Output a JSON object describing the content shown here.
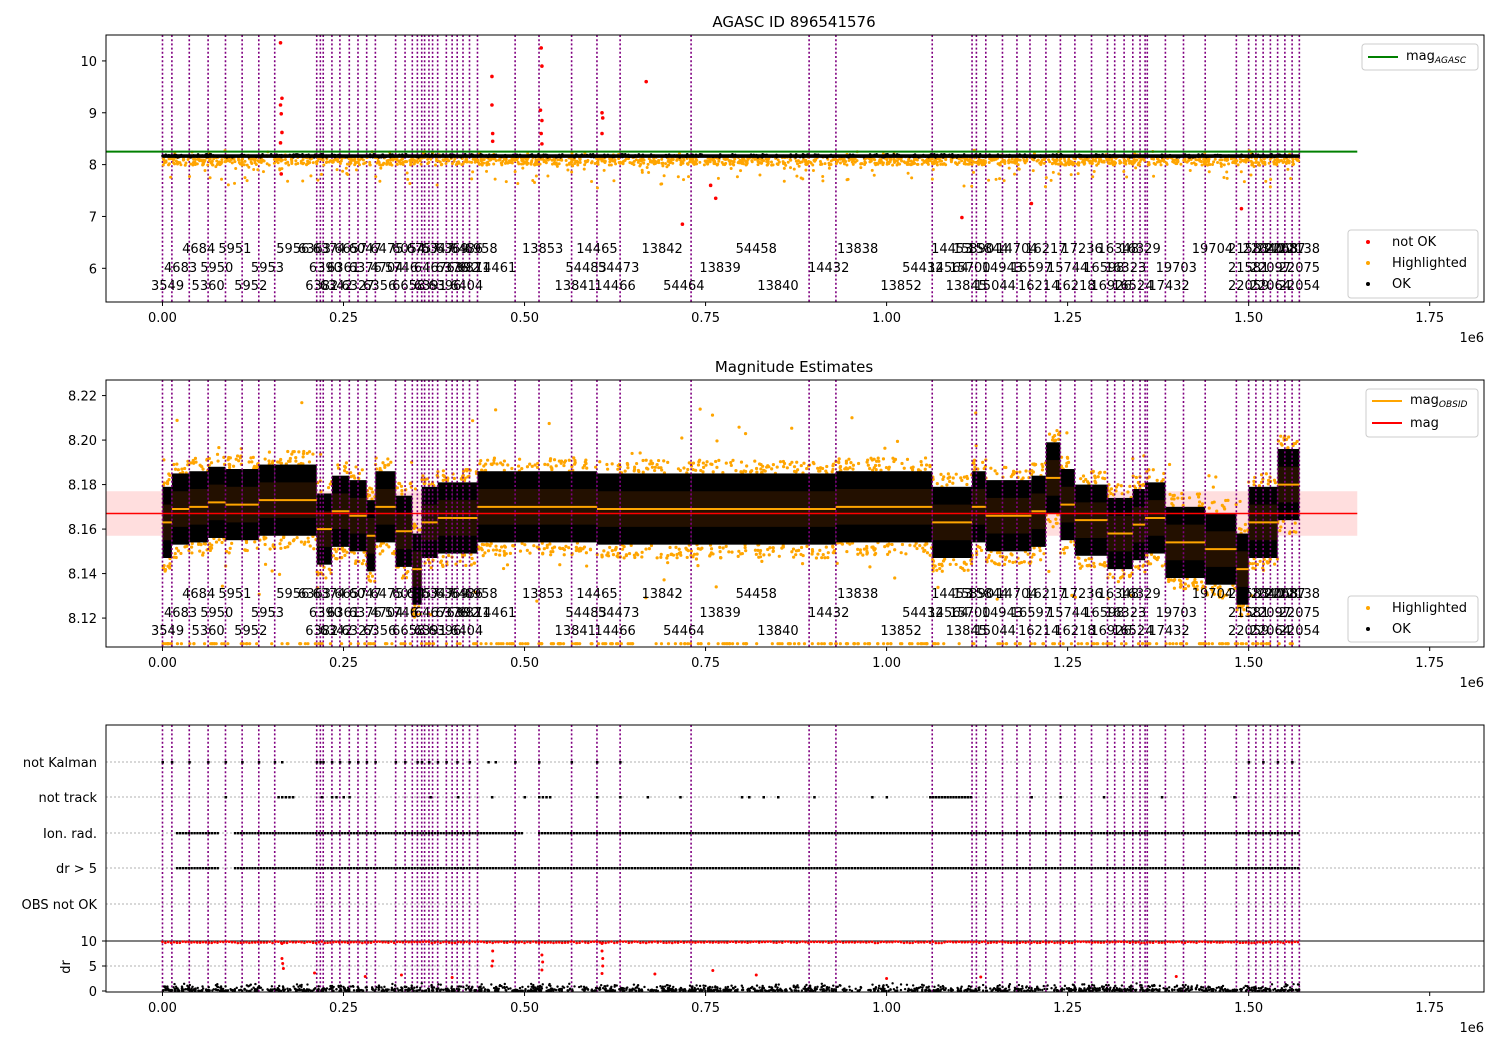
{
  "chart_data": [
    {
      "type": "scatter",
      "title": "AGASC ID 896541576",
      "xlabel": "",
      "ylabel": "",
      "x_offset_label": "1e6",
      "xlim": [
        -0.078,
        1.825
      ],
      "ylim": [
        5.35,
        10.5
      ],
      "x_ticks": [
        0.0,
        0.25,
        0.5,
        0.75,
        1.0,
        1.25,
        1.5,
        1.75
      ],
      "x_tick_labels": [
        "0.00",
        "0.25",
        "0.50",
        "0.75",
        "1.00",
        "1.25",
        "1.50",
        "1.75"
      ],
      "y_ticks": [
        6,
        7,
        8,
        9,
        10
      ],
      "y_tick_labels": [
        "6",
        "7",
        "8",
        "9",
        "10"
      ],
      "grid": false,
      "legends": [
        {
          "placement": "top-right",
          "entries": [
            {
              "label": "mag",
              "sub": "AGASC",
              "color": "#008000",
              "marker": "line"
            }
          ]
        },
        {
          "placement": "bottom-right",
          "entries": [
            {
              "label": "not OK",
              "color": "#ff0000",
              "marker": "dot"
            },
            {
              "label": "Highlighted",
              "color": "#ffa500",
              "marker": "dot"
            },
            {
              "label": "OK",
              "color": "#000000",
              "marker": "dot"
            }
          ]
        }
      ],
      "series": [
        {
          "name": "mag_AGASC",
          "kind": "hline",
          "color": "#008000",
          "y": 8.25,
          "x_range": [
            -0.078,
            1.65
          ]
        },
        {
          "name": "OK",
          "kind": "band",
          "color": "#000000",
          "x_range": [
            0.0,
            1.57
          ],
          "y_range": [
            8.12,
            8.2
          ]
        },
        {
          "name": "not OK",
          "kind": "points",
          "color": "#ff0000",
          "points": [
            [
              0.163,
              10.35
            ],
            [
              0.165,
              9.28
            ],
            [
              0.163,
              9.15
            ],
            [
              0.164,
              8.98
            ],
            [
              0.165,
              8.62
            ],
            [
              0.163,
              8.42
            ],
            [
              0.164,
              7.82
            ],
            [
              0.455,
              9.7
            ],
            [
              0.455,
              9.15
            ],
            [
              0.456,
              8.6
            ],
            [
              0.456,
              8.45
            ],
            [
              0.523,
              10.25
            ],
            [
              0.524,
              9.9
            ],
            [
              0.522,
              9.05
            ],
            [
              0.524,
              8.85
            ],
            [
              0.523,
              8.6
            ],
            [
              0.524,
              8.4
            ],
            [
              0.607,
              9.0
            ],
            [
              0.608,
              8.9
            ],
            [
              0.607,
              8.6
            ],
            [
              0.668,
              9.6
            ],
            [
              0.718,
              6.85
            ],
            [
              0.757,
              7.6
            ],
            [
              0.764,
              7.35
            ],
            [
              1.104,
              6.98
            ],
            [
              1.2,
              7.25
            ],
            [
              1.49,
              7.15
            ]
          ]
        },
        {
          "name": "Highlighted",
          "kind": "scatter-band",
          "color": "#ffa500",
          "x_range": [
            0.0,
            1.57
          ],
          "y_range": [
            7.8,
            8.3
          ]
        }
      ],
      "obsid_lines": [
        0.0,
        0.013,
        0.037,
        0.063,
        0.087,
        0.11,
        0.133,
        0.155,
        0.213,
        0.218,
        0.222,
        0.234,
        0.245,
        0.258,
        0.27,
        0.282,
        0.294,
        0.322,
        0.335,
        0.345,
        0.352,
        0.358,
        0.362,
        0.368,
        0.373,
        0.38,
        0.392,
        0.4,
        0.407,
        0.415,
        0.424,
        0.435,
        0.487,
        0.52,
        0.565,
        0.6,
        0.632,
        0.73,
        0.893,
        0.93,
        1.063,
        1.118,
        1.124,
        1.137,
        1.16,
        1.18,
        1.198,
        1.22,
        1.24,
        1.26,
        1.283,
        1.305,
        1.315,
        1.328,
        1.34,
        1.35,
        1.357,
        1.36,
        1.385,
        1.41,
        1.44,
        1.483,
        1.5,
        1.51,
        1.52,
        1.53,
        1.54,
        1.55,
        1.56,
        1.57
      ]
    },
    {
      "type": "scatter",
      "title": "Magnitude Estimates",
      "xlabel": "",
      "ylabel": "",
      "x_offset_label": "1e6",
      "xlim": [
        -0.078,
        1.825
      ],
      "ylim": [
        8.107,
        8.227
      ],
      "x_ticks": [
        0.0,
        0.25,
        0.5,
        0.75,
        1.0,
        1.25,
        1.5,
        1.75
      ],
      "x_tick_labels": [
        "0.00",
        "0.25",
        "0.50",
        "0.75",
        "1.00",
        "1.25",
        "1.50",
        "1.75"
      ],
      "y_ticks": [
        8.12,
        8.14,
        8.16,
        8.18,
        8.2,
        8.22
      ],
      "y_tick_labels": [
        "8.12",
        "8.14",
        "8.16",
        "8.18",
        "8.20",
        "8.22"
      ],
      "grid": false,
      "legends": [
        {
          "placement": "top-right",
          "entries": [
            {
              "label": "mag",
              "sub": "OBSID",
              "color": "#ffa500",
              "marker": "line"
            },
            {
              "label": "mag",
              "sub": "",
              "color": "#ff0000",
              "marker": "line"
            }
          ]
        },
        {
          "placement": "bottom-right",
          "entries": [
            {
              "label": "Highlighted",
              "color": "#ffa500",
              "marker": "dot"
            },
            {
              "label": "OK",
              "color": "#000000",
              "marker": "dot"
            }
          ]
        }
      ],
      "series": [
        {
          "name": "mag",
          "kind": "hline",
          "color": "#ff0000",
          "y": 8.167,
          "band": [
            8.157,
            8.177
          ],
          "x_range": [
            -0.078,
            1.65
          ]
        },
        {
          "name": "mag_OBSID",
          "kind": "steps",
          "color": "#ffa500",
          "steps": [
            [
              0.0,
              0.013,
              8.163
            ],
            [
              0.013,
              0.037,
              8.169
            ],
            [
              0.037,
              0.063,
              8.17
            ],
            [
              0.063,
              0.087,
              8.172
            ],
            [
              0.087,
              0.11,
              8.171
            ],
            [
              0.11,
              0.133,
              8.171
            ],
            [
              0.133,
              0.155,
              8.173
            ],
            [
              0.155,
              0.213,
              8.173
            ],
            [
              0.213,
              0.234,
              8.16
            ],
            [
              0.234,
              0.258,
              8.168
            ],
            [
              0.258,
              0.282,
              8.166
            ],
            [
              0.282,
              0.294,
              8.157
            ],
            [
              0.294,
              0.322,
              8.17
            ],
            [
              0.322,
              0.345,
              8.159
            ],
            [
              0.345,
              0.358,
              8.142
            ],
            [
              0.358,
              0.38,
              8.163
            ],
            [
              0.38,
              0.4,
              8.165
            ],
            [
              0.4,
              0.435,
              8.165
            ],
            [
              0.435,
              0.52,
              8.17
            ],
            [
              0.52,
              0.6,
              8.17
            ],
            [
              0.6,
              0.73,
              8.169
            ],
            [
              0.73,
              0.93,
              8.169
            ],
            [
              0.93,
              1.063,
              8.17
            ],
            [
              1.063,
              1.118,
              8.163
            ],
            [
              1.118,
              1.137,
              8.17
            ],
            [
              1.137,
              1.16,
              8.166
            ],
            [
              1.16,
              1.2,
              8.166
            ],
            [
              1.2,
              1.22,
              8.168
            ],
            [
              1.22,
              1.24,
              8.183
            ],
            [
              1.24,
              1.26,
              8.171
            ],
            [
              1.26,
              1.305,
              8.164
            ],
            [
              1.305,
              1.34,
              8.158
            ],
            [
              1.34,
              1.357,
              8.162
            ],
            [
              1.357,
              1.385,
              8.165
            ],
            [
              1.385,
              1.44,
              8.154
            ],
            [
              1.44,
              1.483,
              8.151
            ],
            [
              1.483,
              1.5,
              8.142
            ],
            [
              1.5,
              1.54,
              8.163
            ],
            [
              1.54,
              1.57,
              8.18
            ]
          ]
        },
        {
          "name": "OK",
          "kind": "band-per-segment",
          "color": "#000000"
        },
        {
          "name": "Highlighted",
          "kind": "scatter-band",
          "color": "#ffa500"
        }
      ],
      "obsid_lines": "same-as-panel-1"
    },
    {
      "type": "scatter",
      "title": "",
      "xlabel": "",
      "ylabel": "dr",
      "x_offset_label": "1e6",
      "xlim": [
        -0.078,
        1.825
      ],
      "ylim": [
        -0.5,
        10.5
      ],
      "x_ticks": [
        0.0,
        0.25,
        0.5,
        0.75,
        1.0,
        1.25,
        1.5,
        1.75
      ],
      "x_tick_labels": [
        "0.00",
        "0.25",
        "0.50",
        "0.75",
        "1.00",
        "1.25",
        "1.50",
        "1.75"
      ],
      "y_ticks": [
        0,
        5,
        10
      ],
      "y_tick_labels": [
        "0",
        "5",
        "10"
      ],
      "flag_labels": [
        "not Kalman",
        "not track",
        "Ion. rad.",
        "dr > 5",
        "OBS not OK"
      ],
      "grid": true,
      "series": [
        {
          "name": "dr OK",
          "kind": "scatter-band",
          "color": "#000000",
          "y_range": [
            0,
            1.5
          ]
        },
        {
          "name": "dr not OK",
          "kind": "row",
          "color": "#ff0000",
          "y": 10
        },
        {
          "name": "dr spikes",
          "kind": "points",
          "color": "#ff0000",
          "points": [
            [
              0.165,
              9.5
            ],
            [
              0.165,
              6.5
            ],
            [
              0.166,
              5.5
            ],
            [
              0.167,
              4.5
            ],
            [
              0.456,
              8.0
            ],
            [
              0.456,
              6.0
            ],
            [
              0.455,
              5.0
            ],
            [
              0.524,
              7.2
            ],
            [
              0.525,
              5.8
            ],
            [
              0.524,
              4.2
            ],
            [
              0.607,
              9.5
            ],
            [
              0.607,
              8.0
            ],
            [
              0.608,
              6.5
            ],
            [
              0.608,
              5.0
            ],
            [
              0.607,
              3.5
            ],
            [
              0.33,
              3.2
            ],
            [
              0.4,
              2.7
            ],
            [
              0.28,
              2.9
            ],
            [
              0.68,
              3.4
            ],
            [
              0.76,
              4.1
            ],
            [
              0.82,
              3.2
            ],
            [
              1.0,
              2.5
            ],
            [
              1.13,
              2.8
            ],
            [
              1.4,
              2.9
            ],
            [
              0.21,
              3.6
            ]
          ]
        }
      ],
      "flag_rows": {
        "not Kalman": [
          0.0,
          0.013,
          0.037,
          0.063,
          0.087,
          0.11,
          0.133,
          0.155,
          0.165,
          0.213,
          0.218,
          0.222,
          0.234,
          0.245,
          0.258,
          0.27,
          0.282,
          0.294,
          0.322,
          0.335,
          0.352,
          0.358,
          0.368,
          0.38,
          0.392,
          0.407,
          0.424,
          0.45,
          0.46,
          0.487,
          0.52,
          0.565,
          0.6,
          0.632,
          1.5,
          1.52,
          1.54,
          1.56
        ],
        "not track": [
          0.087,
          0.16,
          0.165,
          0.17,
          0.175,
          0.18,
          0.22,
          0.234,
          0.24,
          0.25,
          0.258,
          0.37,
          0.408,
          0.455,
          0.5,
          0.52,
          0.525,
          0.53,
          0.535,
          0.6,
          0.632,
          0.67,
          0.715,
          0.8,
          0.81,
          0.83,
          0.85,
          0.9,
          0.98,
          1.0,
          1.2,
          1.24,
          1.3,
          1.38,
          1.48
        ],
        "Ion. rad.": {
          "from": 0.02,
          "to": 1.57,
          "gaps": [
            [
              0.08,
              0.1
            ],
            [
              0.5,
              0.52
            ]
          ]
        },
        "dr > 5": {
          "from": 0.02,
          "to": 1.57,
          "gaps": [
            [
              0.08,
              0.1
            ]
          ]
        },
        "OBS not OK": []
      },
      "obsid_lines": "same-as-panel-1"
    }
  ],
  "obsid_labels": {
    "row1": [
      "4684",
      "5951",
      "5956",
      "6363",
      "6374",
      "6657",
      "6047",
      "6475",
      "6054",
      "6757",
      "6347",
      "6369",
      "6486",
      "6958",
      "13853",
      "14465",
      "13842",
      "54458",
      "13838",
      "14453",
      "15390",
      "15844",
      "14704",
      "16217",
      "17236",
      "16348",
      "16329",
      "19704",
      "21583",
      "22040",
      "22068",
      "22087",
      "22138"
    ],
    "row1_x": [
      0.05,
      0.1,
      0.18,
      0.21,
      0.23,
      0.26,
      0.28,
      0.31,
      0.34,
      0.36,
      0.38,
      0.4,
      0.42,
      0.44,
      0.525,
      0.6,
      0.69,
      0.82,
      0.96,
      1.09,
      1.12,
      1.14,
      1.18,
      1.22,
      1.27,
      1.32,
      1.35,
      1.45,
      1.5,
      1.52,
      1.54,
      1.55,
      1.57
    ],
    "row2": [
      "4683",
      "5950",
      "5953",
      "6390",
      "6361",
      "6376",
      "4704",
      "5746",
      "6467",
      "6376",
      "6392",
      "6871",
      "14461",
      "54483",
      "54473",
      "13839",
      "14432",
      "54432",
      "14564",
      "15700",
      "14943",
      "16597",
      "15744",
      "16598",
      "16323",
      "19703",
      "21581",
      "22097",
      "22075"
    ],
    "row2_x": [
      0.025,
      0.075,
      0.145,
      0.225,
      0.25,
      0.28,
      0.31,
      0.33,
      0.37,
      0.4,
      0.415,
      0.43,
      0.46,
      0.585,
      0.63,
      0.77,
      0.92,
      1.05,
      1.085,
      1.115,
      1.16,
      1.2,
      1.25,
      1.3,
      1.33,
      1.4,
      1.5,
      1.53,
      1.57
    ],
    "row3": [
      "3549",
      "5360",
      "5952",
      "6382",
      "6342",
      "6327",
      "6356",
      "6658",
      "6391",
      "6396",
      "6404",
      "13841",
      "14466",
      "54464",
      "13840",
      "13852",
      "13845",
      "15044",
      "16214",
      "16218",
      "16926",
      "16524",
      "17432",
      "22059",
      "22064",
      "22054"
    ],
    "row3_x": [
      0.007,
      0.063,
      0.122,
      0.22,
      0.24,
      0.27,
      0.3,
      0.34,
      0.37,
      0.39,
      0.42,
      0.57,
      0.625,
      0.72,
      0.85,
      1.02,
      1.11,
      1.15,
      1.21,
      1.26,
      1.31,
      1.34,
      1.39,
      1.5,
      1.53,
      1.57
    ]
  }
}
